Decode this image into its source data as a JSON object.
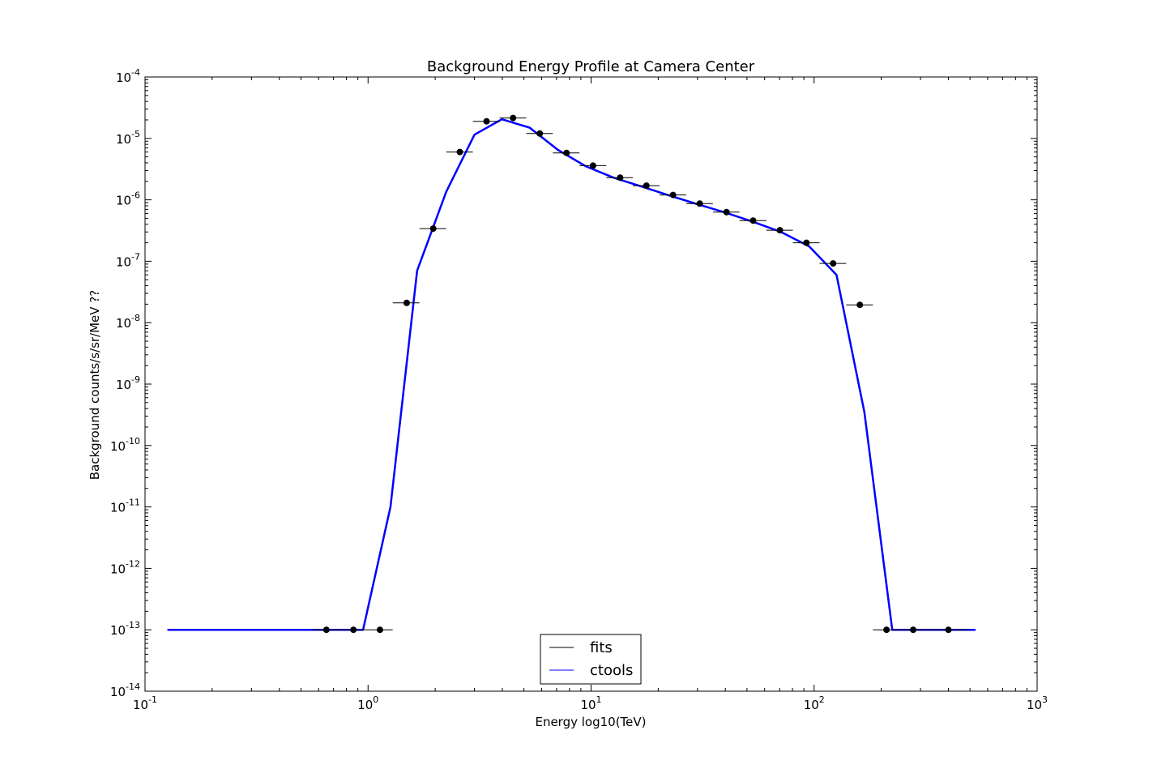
{
  "chart_data": {
    "type": "line",
    "title": "Background Energy Profile at Camera Center",
    "xlabel": "Energy log10(TeV)",
    "ylabel": "Background counts/s/sr/MeV ??",
    "x_scale": "log",
    "y_scale": "log",
    "xlim": [
      0.1,
      1000
    ],
    "ylim": [
      1e-14,
      0.0001
    ],
    "x_ticks": [
      {
        "value": 0.1,
        "base": "10",
        "exp": "-1"
      },
      {
        "value": 1,
        "base": "10",
        "exp": "0"
      },
      {
        "value": 10,
        "base": "10",
        "exp": "1"
      },
      {
        "value": 100,
        "base": "10",
        "exp": "2"
      },
      {
        "value": 1000,
        "base": "10",
        "exp": "3"
      }
    ],
    "y_ticks": [
      {
        "value": 1e-14,
        "base": "10",
        "exp": "-14"
      },
      {
        "value": 1e-13,
        "base": "10",
        "exp": "-13"
      },
      {
        "value": 1e-12,
        "base": "10",
        "exp": "-12"
      },
      {
        "value": 1e-11,
        "base": "10",
        "exp": "-11"
      },
      {
        "value": 1e-10,
        "base": "10",
        "exp": "-10"
      },
      {
        "value": 1e-09,
        "base": "10",
        "exp": "-9"
      },
      {
        "value": 1e-08,
        "base": "10",
        "exp": "-8"
      },
      {
        "value": 1e-07,
        "base": "10",
        "exp": "-7"
      },
      {
        "value": 1e-06,
        "base": "10",
        "exp": "-6"
      },
      {
        "value": 1e-05,
        "base": "10",
        "exp": "-5"
      },
      {
        "value": 0.0001,
        "base": "10",
        "exp": "-4"
      }
    ],
    "grid": false,
    "legend": {
      "placement": "lower-center",
      "entries": [
        "fits",
        "ctools"
      ]
    },
    "series": [
      {
        "name": "fits",
        "kind": "errorbar-points",
        "color": "#000000",
        "points": [
          {
            "x": 0.65,
            "y": 1e-13,
            "xlo": 0.56,
            "xhi": 0.75
          },
          {
            "x": 0.86,
            "y": 1e-13,
            "xlo": 0.75,
            "xhi": 0.98
          },
          {
            "x": 1.13,
            "y": 1e-13,
            "xlo": 0.98,
            "xhi": 1.29
          },
          {
            "x": 1.49,
            "y": 2.1e-08,
            "xlo": 1.29,
            "xhi": 1.7
          },
          {
            "x": 1.96,
            "y": 3.4e-07,
            "xlo": 1.7,
            "xhi": 2.24
          },
          {
            "x": 2.58,
            "y": 6e-06,
            "xlo": 2.24,
            "xhi": 2.95
          },
          {
            "x": 3.4,
            "y": 1.9e-05,
            "xlo": 2.95,
            "xhi": 3.89
          },
          {
            "x": 4.47,
            "y": 2.15e-05,
            "xlo": 3.89,
            "xhi": 5.12
          },
          {
            "x": 5.89,
            "y": 1.2e-05,
            "xlo": 5.12,
            "xhi": 6.74
          },
          {
            "x": 7.76,
            "y": 5.8e-06,
            "xlo": 6.74,
            "xhi": 8.87
          },
          {
            "x": 10.2,
            "y": 3.6e-06,
            "xlo": 8.87,
            "xhi": 11.7
          },
          {
            "x": 13.5,
            "y": 2.3e-06,
            "xlo": 11.7,
            "xhi": 15.4
          },
          {
            "x": 17.7,
            "y": 1.7e-06,
            "xlo": 15.4,
            "xhi": 20.3
          },
          {
            "x": 23.3,
            "y": 1.2e-06,
            "xlo": 20.3,
            "xhi": 26.7
          },
          {
            "x": 30.7,
            "y": 8.7e-07,
            "xlo": 26.7,
            "xhi": 35.2
          },
          {
            "x": 40.5,
            "y": 6.3e-07,
            "xlo": 35.2,
            "xhi": 46.3
          },
          {
            "x": 53.3,
            "y": 4.6e-07,
            "xlo": 46.3,
            "xhi": 61.0
          },
          {
            "x": 70.2,
            "y": 3.2e-07,
            "xlo": 61.0,
            "xhi": 80.3
          },
          {
            "x": 92.4,
            "y": 2e-07,
            "xlo": 80.3,
            "xhi": 105.8
          },
          {
            "x": 121.7,
            "y": 9.2e-08,
            "xlo": 105.8,
            "xhi": 139.3
          },
          {
            "x": 160.3,
            "y": 1.95e-08,
            "xlo": 139.3,
            "xhi": 183.4
          },
          {
            "x": 211.1,
            "y": 1e-13,
            "xlo": 183.4,
            "xhi": 241.5
          },
          {
            "x": 278.0,
            "y": 1e-13,
            "xlo": 241.5,
            "xhi": 318.0
          },
          {
            "x": 400.0,
            "y": 1e-13,
            "xlo": 318.0,
            "xhi": 500.0
          }
        ]
      },
      {
        "name": "ctools",
        "kind": "line",
        "color": "#0000ff",
        "x": [
          0.126,
          0.95,
          1.26,
          1.66,
          2.24,
          3.0,
          3.98,
          5.3,
          7.1,
          9.5,
          12.6,
          16.8,
          22.4,
          30,
          40,
          53,
          71,
          95,
          126,
          168,
          224,
          530
        ],
        "y": [
          1e-13,
          1e-13,
          1e-11,
          7e-08,
          1.35e-06,
          1.15e-05,
          2.05e-05,
          1.5e-05,
          6.5e-06,
          3.5e-06,
          2.3e-06,
          1.65e-06,
          1.18e-06,
          8.5e-07,
          6.2e-07,
          4.4e-07,
          3e-07,
          1.75e-07,
          6e-08,
          3.5e-10,
          1e-13,
          1e-13
        ]
      }
    ]
  }
}
